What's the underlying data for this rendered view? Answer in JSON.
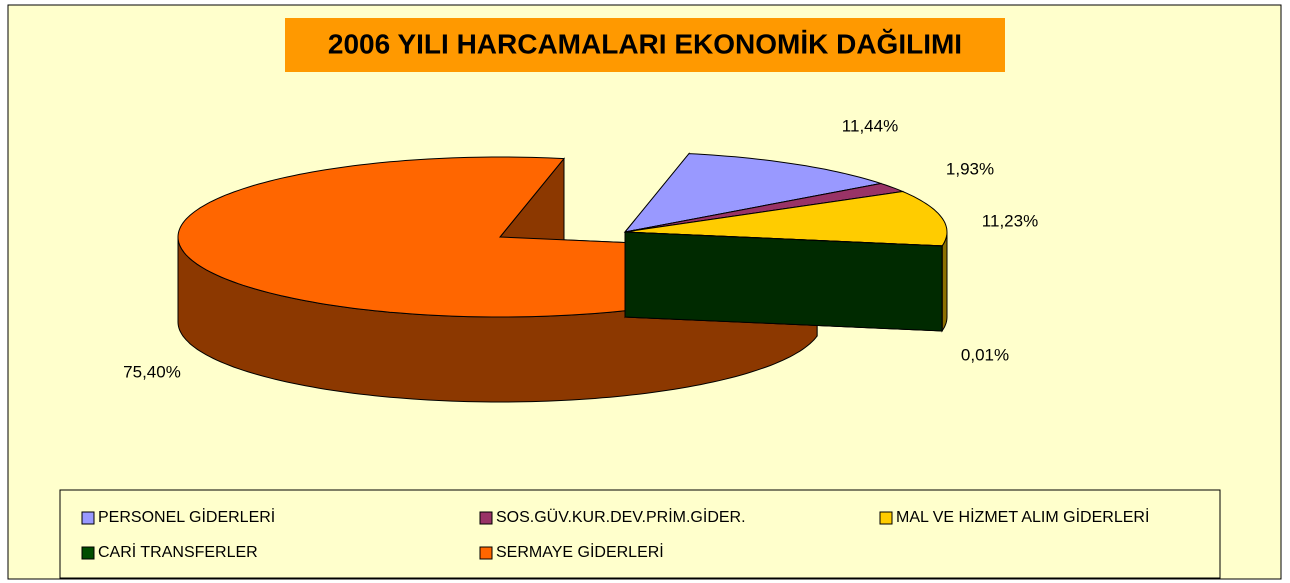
{
  "chart_data": {
    "type": "pie",
    "title": "2006 YILI HARCAMALARI EKONOMİK DAĞILIMI",
    "categories": [
      "PERSONEL GİDERLERİ",
      "SOS.GÜV.KUR.DEV.PRİM.GİDER.",
      "MAL VE HİZMET ALIM GİDERLERİ",
      "CARİ TRANSFERLER",
      "SERMAYE GİDERLERİ"
    ],
    "values": [
      11.44,
      1.93,
      11.23,
      0.01,
      75.4
    ],
    "value_labels": [
      "11,44%",
      "1,93%",
      "11,23%",
      "0,01%",
      "75,40%"
    ],
    "colors": [
      "#9999ff",
      "#993366",
      "#ffcc00",
      "#004d00",
      "#ff6600"
    ],
    "legend": "bottom"
  }
}
